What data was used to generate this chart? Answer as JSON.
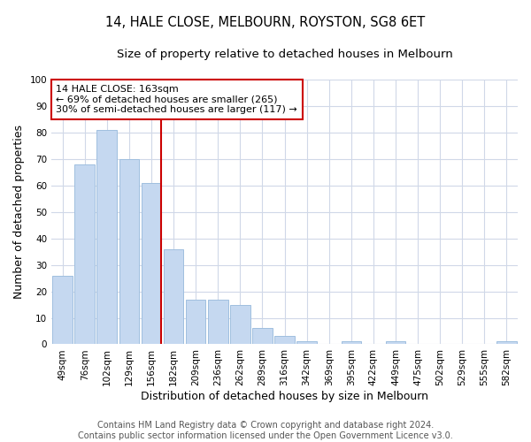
{
  "title": "14, HALE CLOSE, MELBOURN, ROYSTON, SG8 6ET",
  "subtitle": "Size of property relative to detached houses in Melbourn",
  "xlabel": "Distribution of detached houses by size in Melbourn",
  "ylabel": "Number of detached properties",
  "footer_line1": "Contains HM Land Registry data © Crown copyright and database right 2024.",
  "footer_line2": "Contains public sector information licensed under the Open Government Licence v3.0.",
  "categories": [
    "49sqm",
    "76sqm",
    "102sqm",
    "129sqm",
    "156sqm",
    "182sqm",
    "209sqm",
    "236sqm",
    "262sqm",
    "289sqm",
    "316sqm",
    "342sqm",
    "369sqm",
    "395sqm",
    "422sqm",
    "449sqm",
    "475sqm",
    "502sqm",
    "529sqm",
    "555sqm",
    "582sqm"
  ],
  "values": [
    26,
    68,
    81,
    70,
    61,
    36,
    17,
    17,
    15,
    6,
    3,
    1,
    0,
    1,
    0,
    1,
    0,
    0,
    0,
    0,
    1
  ],
  "bar_color": "#c5d8f0",
  "bar_edge_color": "#9fbfdf",
  "highlight_index": 4,
  "highlight_line_color": "#cc0000",
  "annotation_text": "14 HALE CLOSE: 163sqm\n← 69% of detached houses are smaller (265)\n30% of semi-detached houses are larger (117) →",
  "annotation_box_color": "#ffffff",
  "annotation_box_edge_color": "#cc0000",
  "ylim": [
    0,
    100
  ],
  "yticks": [
    0,
    10,
    20,
    30,
    40,
    50,
    60,
    70,
    80,
    90,
    100
  ],
  "bg_color": "#ffffff",
  "plot_bg_color": "#ffffff",
  "grid_color": "#d0d8e8",
  "title_fontsize": 10.5,
  "subtitle_fontsize": 9.5,
  "axis_label_fontsize": 9,
  "tick_fontsize": 7.5,
  "footer_fontsize": 7
}
